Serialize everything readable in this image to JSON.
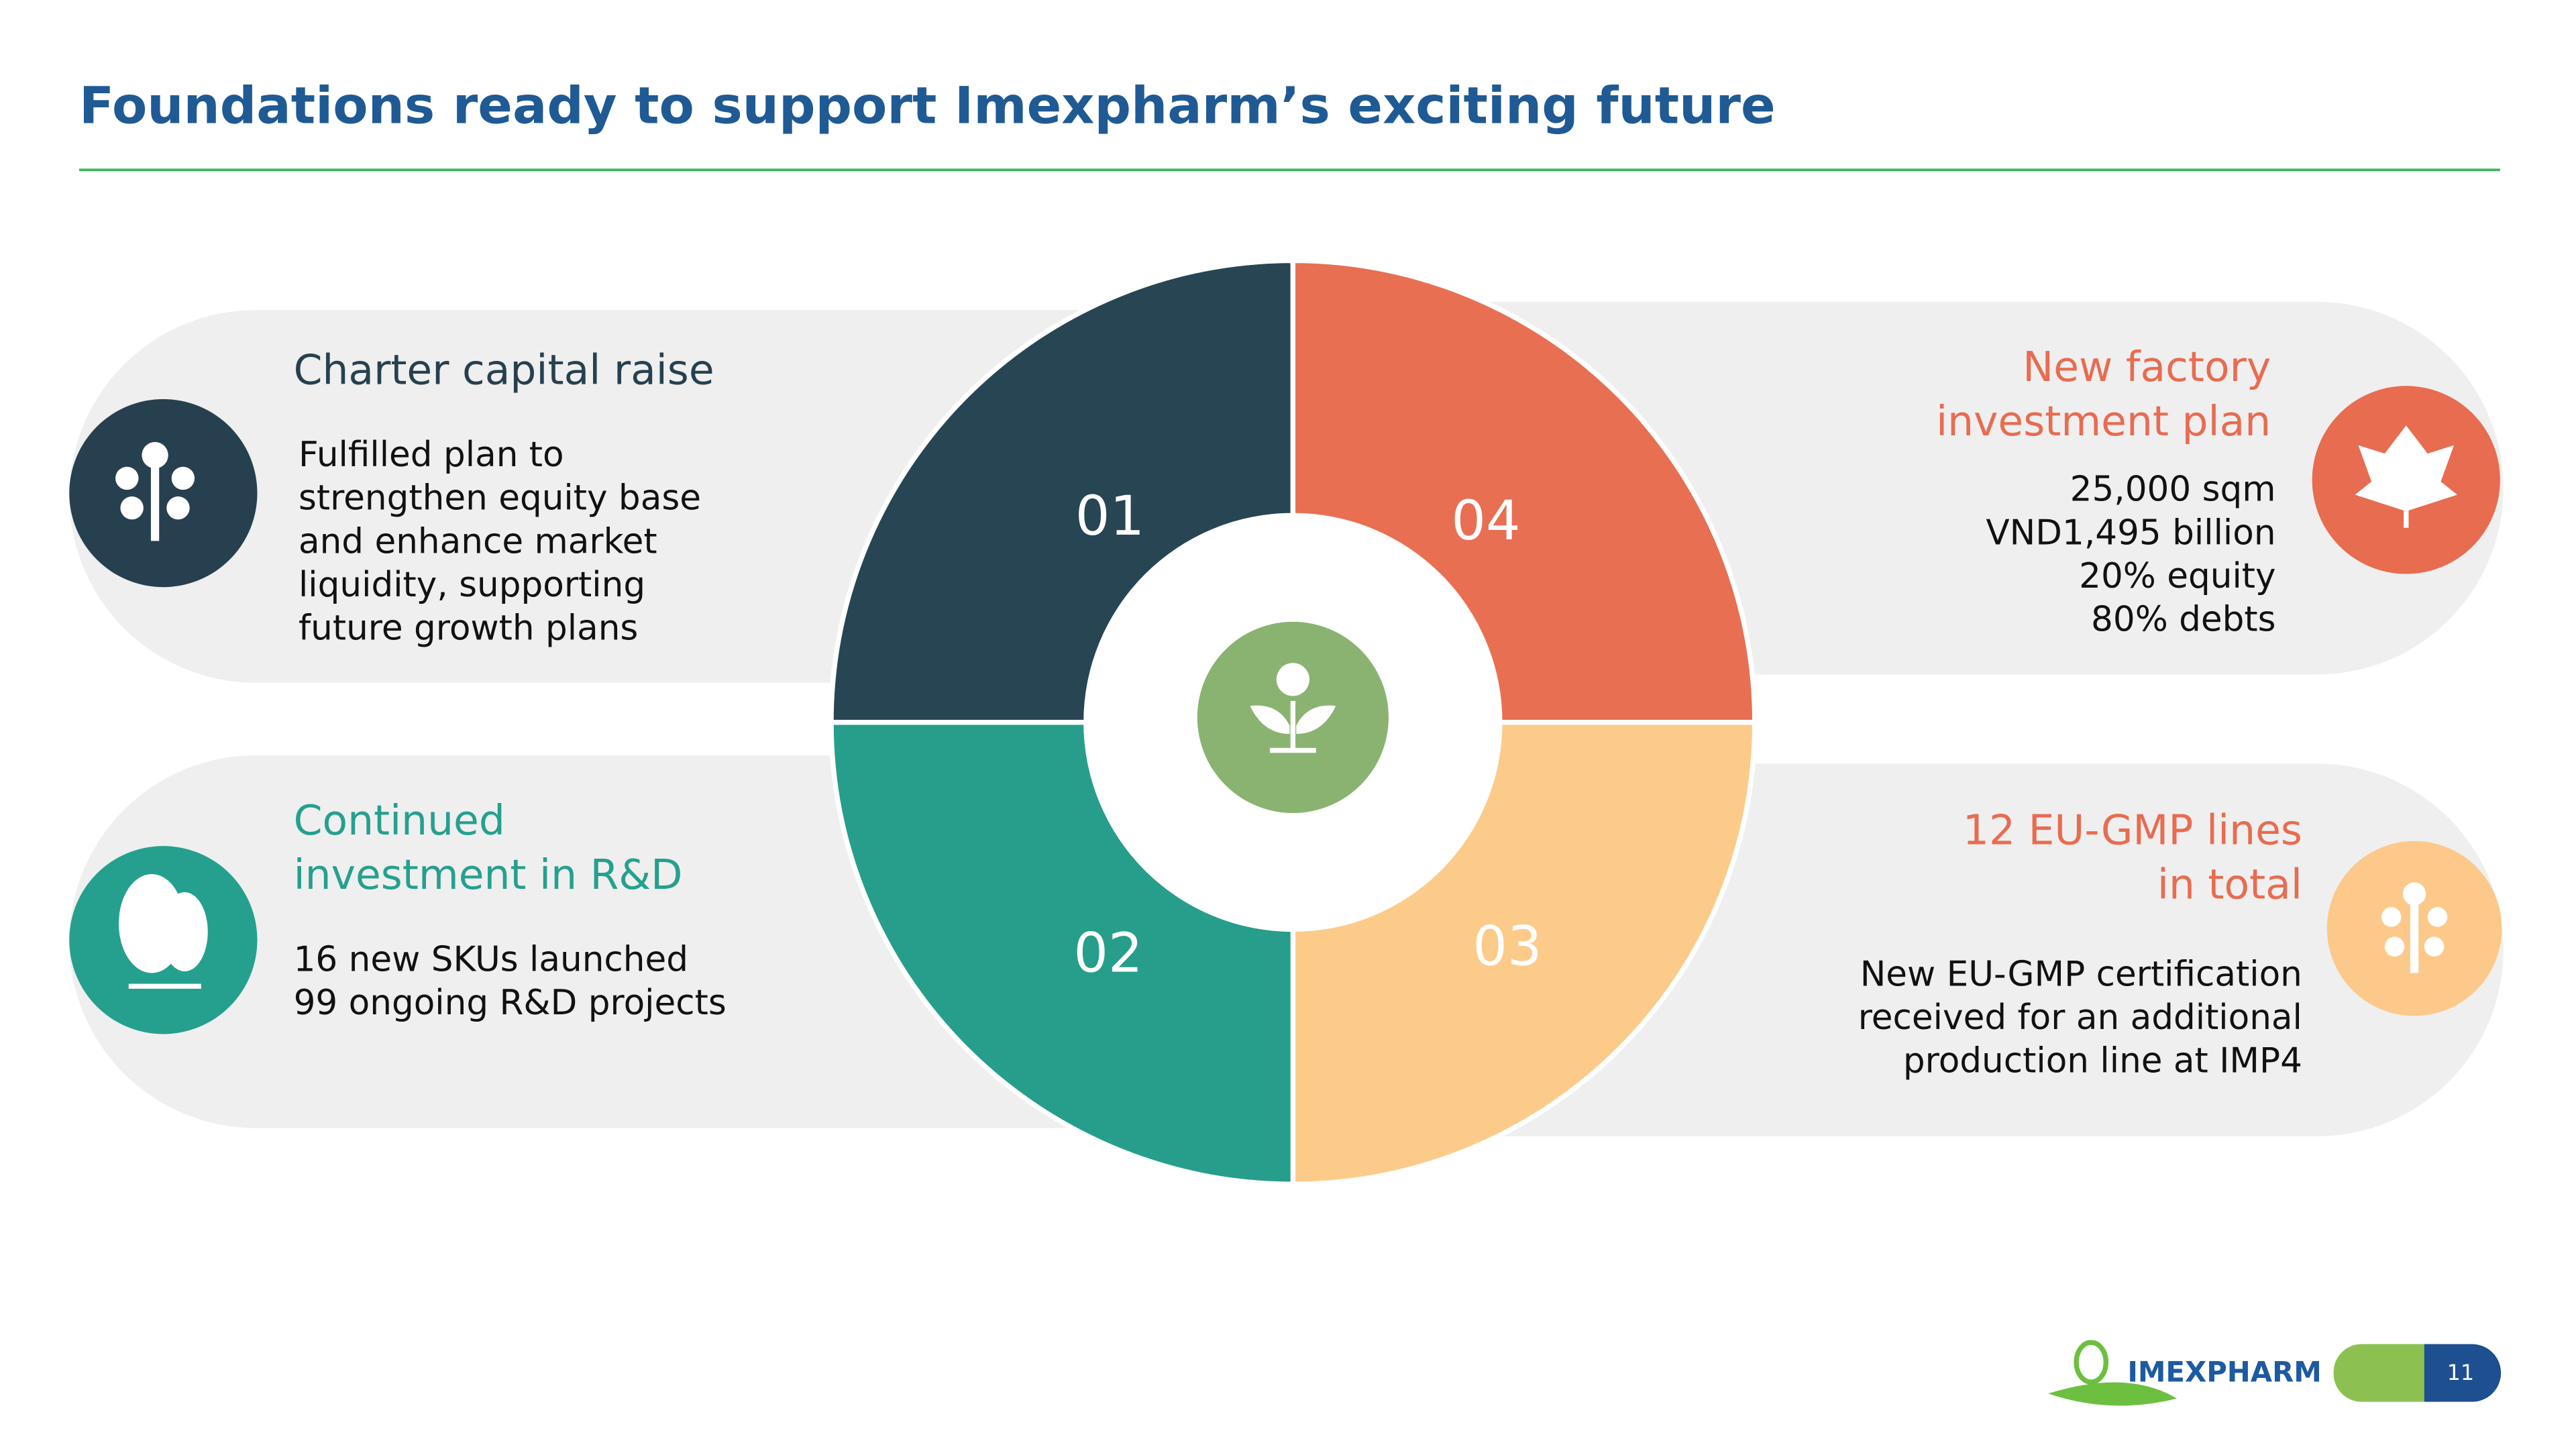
{
  "header": {
    "title": "Foundations ready to support Imexpharm’s exciting future"
  },
  "quadrants": [
    {
      "number": "01",
      "title": [
        "Charter capital raise"
      ],
      "body": [
        "Fulfilled plan to",
        "strengthen equity base",
        "and enhance market",
        "liquidity, supporting",
        "future growth plans"
      ]
    },
    {
      "number": "02",
      "title": [
        "Continued",
        "investment in R&D"
      ],
      "body": [
        "16 new SKUs launched",
        "99 ongoing R&D projects"
      ]
    },
    {
      "number": "03",
      "title": [
        "12 EU-GMP lines",
        "in total"
      ],
      "body": [
        "New EU-GMP certification",
        "received for an additional",
        "production line at IMP4"
      ]
    },
    {
      "number": "04",
      "title": [
        "New factory",
        "investment plan"
      ],
      "body": [
        "25,000 sqm",
        "VND1,495 billion",
        "20% equity",
        "80% debts"
      ]
    }
  ],
  "footer": {
    "logo": "IMEXPHARM",
    "page": "11"
  }
}
